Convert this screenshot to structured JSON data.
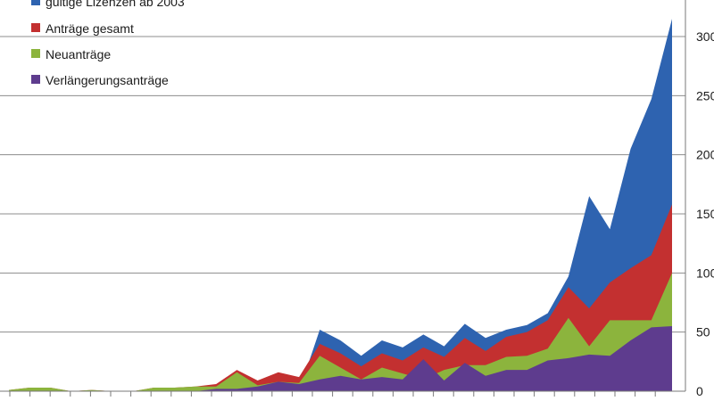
{
  "chart_data": {
    "type": "area",
    "stacked": false,
    "title": "",
    "xlabel": "",
    "ylabel": "",
    "ylim": [
      0,
      315
    ],
    "y_ticks": [
      0,
      50,
      100,
      150,
      200,
      250,
      300
    ],
    "y_axis_position": "right",
    "grid": "horizontal",
    "legend_position": "top-left",
    "x_count": 33,
    "series": [
      {
        "name": "gültige Lizenzen ab 2003",
        "color": "#2e63b0",
        "values": [
          0,
          0,
          0,
          0,
          0,
          0,
          0,
          0,
          0,
          0,
          0,
          0,
          0,
          0,
          0,
          52,
          43,
          30,
          43,
          37,
          48,
          38,
          57,
          45,
          52,
          56,
          66,
          97,
          165,
          137,
          205,
          247,
          315
        ]
      },
      {
        "name": "Anträge gesamt",
        "color": "#c33030",
        "values": [
          1,
          3,
          3,
          0,
          1,
          0,
          0,
          3,
          3,
          4,
          6,
          18,
          9,
          16,
          12,
          40,
          32,
          21,
          32,
          26,
          37,
          29,
          45,
          34,
          46,
          50,
          60,
          88,
          70,
          92,
          104,
          115,
          158
        ]
      },
      {
        "name": "Neuanträge",
        "color": "#8cb43d",
        "values": [
          1,
          3,
          3,
          0,
          1,
          0,
          0,
          3,
          3,
          4,
          4,
          16,
          5,
          8,
          7,
          30,
          20,
          10,
          20,
          15,
          10,
          18,
          22,
          22,
          29,
          30,
          36,
          62,
          38,
          60,
          60,
          60,
          100
        ]
      },
      {
        "name": "Verlängerungsanträge",
        "color": "#5e3c8e",
        "values": [
          0,
          0,
          0,
          0,
          0,
          0,
          0,
          0,
          0,
          0,
          2,
          2,
          4,
          8,
          6,
          10,
          13,
          10,
          12,
          10,
          27,
          9,
          24,
          13,
          18,
          18,
          26,
          28,
          31,
          30,
          43,
          54,
          55
        ]
      }
    ]
  }
}
